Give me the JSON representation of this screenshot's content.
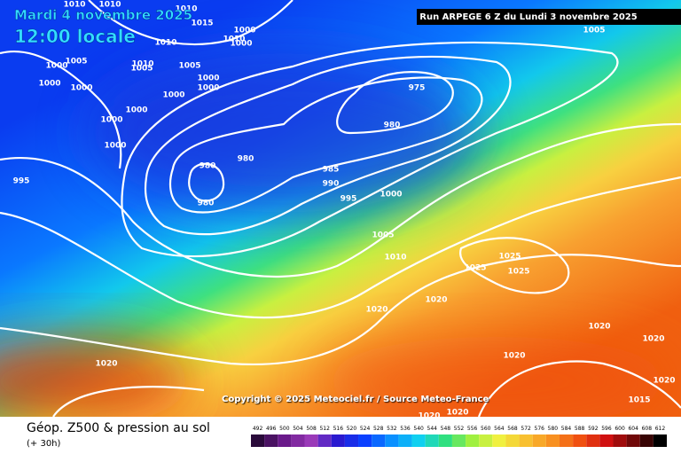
{
  "header": {
    "date": "Mardi 4 novembre 2025",
    "time": "12:00 locale",
    "run": "Run ARPEGE 6 Z du Lundi 3 novembre 2025"
  },
  "map": {
    "copyright": "Copyright © 2025 Meteociel.fr / Source Meteo-France",
    "isobar_labels": [
      975,
      980,
      980,
      980,
      980,
      985,
      990,
      995,
      1000,
      1005,
      1010,
      1020,
      1020,
      1025,
      1025,
      1025,
      1020,
      1020,
      1020,
      1020,
      1015,
      1020,
      1020,
      1020,
      995,
      1000,
      1000,
      1000,
      1000,
      1000,
      1000,
      1005,
      1005,
      1010,
      1010,
      1000,
      1000,
      1010,
      1005,
      1015,
      1010,
      1010,
      1010,
      1000,
      1000,
      1000,
      1005
    ]
  },
  "footer": {
    "title": "Géop. Z500 & pression au sol",
    "lead": "(+ 30h)",
    "scale": [
      492,
      496,
      500,
      504,
      508,
      512,
      516,
      520,
      524,
      528,
      532,
      536,
      540,
      544,
      548,
      552,
      556,
      560,
      564,
      568,
      572,
      576,
      580,
      584,
      588,
      592,
      596,
      600,
      604,
      608,
      612
    ]
  }
}
